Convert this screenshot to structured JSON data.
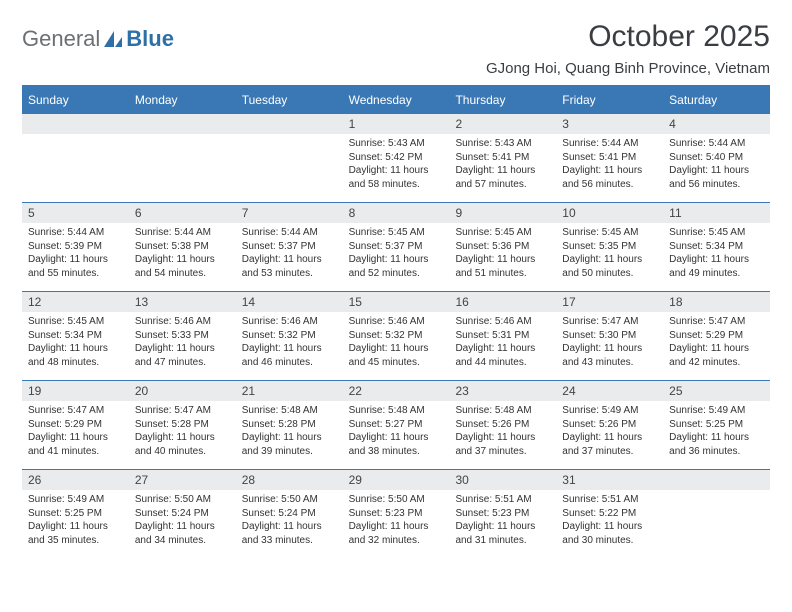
{
  "logo": {
    "part1": "General",
    "part2": "Blue"
  },
  "title": "October 2025",
  "location": "GJong Hoi, Quang Binh Province, Vietnam",
  "colors": {
    "header_bg": "#3a78b5",
    "header_text": "#ffffff",
    "daynum_bg": "#e9ebec",
    "rule": "#3a78b5",
    "body_text": "#333333",
    "logo_gray": "#6b7074",
    "logo_blue": "#2f6fa8",
    "page_bg": "#ffffff"
  },
  "day_headers": [
    "Sunday",
    "Monday",
    "Tuesday",
    "Wednesday",
    "Thursday",
    "Friday",
    "Saturday"
  ],
  "weeks": [
    [
      {
        "n": "",
        "sr": "",
        "ss": "",
        "dlh": "",
        "dlm": ""
      },
      {
        "n": "",
        "sr": "",
        "ss": "",
        "dlh": "",
        "dlm": ""
      },
      {
        "n": "",
        "sr": "",
        "ss": "",
        "dlh": "",
        "dlm": ""
      },
      {
        "n": "1",
        "sr": "5:43 AM",
        "ss": "5:42 PM",
        "dlh": "11",
        "dlm": "58"
      },
      {
        "n": "2",
        "sr": "5:43 AM",
        "ss": "5:41 PM",
        "dlh": "11",
        "dlm": "57"
      },
      {
        "n": "3",
        "sr": "5:44 AM",
        "ss": "5:41 PM",
        "dlh": "11",
        "dlm": "56"
      },
      {
        "n": "4",
        "sr": "5:44 AM",
        "ss": "5:40 PM",
        "dlh": "11",
        "dlm": "56"
      }
    ],
    [
      {
        "n": "5",
        "sr": "5:44 AM",
        "ss": "5:39 PM",
        "dlh": "11",
        "dlm": "55"
      },
      {
        "n": "6",
        "sr": "5:44 AM",
        "ss": "5:38 PM",
        "dlh": "11",
        "dlm": "54"
      },
      {
        "n": "7",
        "sr": "5:44 AM",
        "ss": "5:37 PM",
        "dlh": "11",
        "dlm": "53"
      },
      {
        "n": "8",
        "sr": "5:45 AM",
        "ss": "5:37 PM",
        "dlh": "11",
        "dlm": "52"
      },
      {
        "n": "9",
        "sr": "5:45 AM",
        "ss": "5:36 PM",
        "dlh": "11",
        "dlm": "51"
      },
      {
        "n": "10",
        "sr": "5:45 AM",
        "ss": "5:35 PM",
        "dlh": "11",
        "dlm": "50"
      },
      {
        "n": "11",
        "sr": "5:45 AM",
        "ss": "5:34 PM",
        "dlh": "11",
        "dlm": "49"
      }
    ],
    [
      {
        "n": "12",
        "sr": "5:45 AM",
        "ss": "5:34 PM",
        "dlh": "11",
        "dlm": "48"
      },
      {
        "n": "13",
        "sr": "5:46 AM",
        "ss": "5:33 PM",
        "dlh": "11",
        "dlm": "47"
      },
      {
        "n": "14",
        "sr": "5:46 AM",
        "ss": "5:32 PM",
        "dlh": "11",
        "dlm": "46"
      },
      {
        "n": "15",
        "sr": "5:46 AM",
        "ss": "5:32 PM",
        "dlh": "11",
        "dlm": "45"
      },
      {
        "n": "16",
        "sr": "5:46 AM",
        "ss": "5:31 PM",
        "dlh": "11",
        "dlm": "44"
      },
      {
        "n": "17",
        "sr": "5:47 AM",
        "ss": "5:30 PM",
        "dlh": "11",
        "dlm": "43"
      },
      {
        "n": "18",
        "sr": "5:47 AM",
        "ss": "5:29 PM",
        "dlh": "11",
        "dlm": "42"
      }
    ],
    [
      {
        "n": "19",
        "sr": "5:47 AM",
        "ss": "5:29 PM",
        "dlh": "11",
        "dlm": "41"
      },
      {
        "n": "20",
        "sr": "5:47 AM",
        "ss": "5:28 PM",
        "dlh": "11",
        "dlm": "40"
      },
      {
        "n": "21",
        "sr": "5:48 AM",
        "ss": "5:28 PM",
        "dlh": "11",
        "dlm": "39"
      },
      {
        "n": "22",
        "sr": "5:48 AM",
        "ss": "5:27 PM",
        "dlh": "11",
        "dlm": "38"
      },
      {
        "n": "23",
        "sr": "5:48 AM",
        "ss": "5:26 PM",
        "dlh": "11",
        "dlm": "37"
      },
      {
        "n": "24",
        "sr": "5:49 AM",
        "ss": "5:26 PM",
        "dlh": "11",
        "dlm": "37"
      },
      {
        "n": "25",
        "sr": "5:49 AM",
        "ss": "5:25 PM",
        "dlh": "11",
        "dlm": "36"
      }
    ],
    [
      {
        "n": "26",
        "sr": "5:49 AM",
        "ss": "5:25 PM",
        "dlh": "11",
        "dlm": "35"
      },
      {
        "n": "27",
        "sr": "5:50 AM",
        "ss": "5:24 PM",
        "dlh": "11",
        "dlm": "34"
      },
      {
        "n": "28",
        "sr": "5:50 AM",
        "ss": "5:24 PM",
        "dlh": "11",
        "dlm": "33"
      },
      {
        "n": "29",
        "sr": "5:50 AM",
        "ss": "5:23 PM",
        "dlh": "11",
        "dlm": "32"
      },
      {
        "n": "30",
        "sr": "5:51 AM",
        "ss": "5:23 PM",
        "dlh": "11",
        "dlm": "31"
      },
      {
        "n": "31",
        "sr": "5:51 AM",
        "ss": "5:22 PM",
        "dlh": "11",
        "dlm": "30"
      },
      {
        "n": "",
        "sr": "",
        "ss": "",
        "dlh": "",
        "dlm": ""
      }
    ]
  ],
  "labels": {
    "sunrise": "Sunrise:",
    "sunset": "Sunset:",
    "daylight_prefix": "Daylight:",
    "hours_word": "hours",
    "and_word": "and",
    "minutes_word": "minutes."
  }
}
